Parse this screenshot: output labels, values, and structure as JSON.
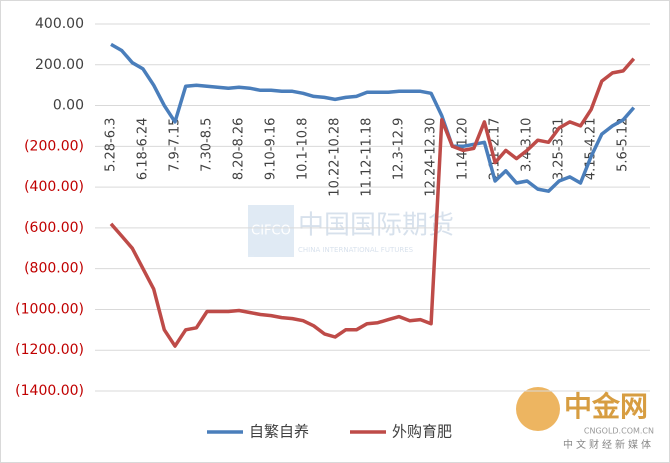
{
  "chart_data": {
    "type": "line",
    "categories": [
      "5.28-6.3",
      null,
      null,
      "6.18-6.24",
      null,
      null,
      "7.9-7.15",
      null,
      null,
      "7.30-8.5",
      null,
      null,
      "8.20-8.26",
      null,
      null,
      "9.10-9.16",
      null,
      null,
      "10.1-10.8",
      null,
      null,
      "10.22-10.28",
      null,
      null,
      "11.12-11.18",
      null,
      null,
      "12.3-12.9",
      null,
      null,
      "12.24-12.30",
      null,
      null,
      "1.14-1.20",
      null,
      null,
      "2.11-2.17",
      null,
      null,
      "3.4-3.10",
      null,
      null,
      "3.25-3.31",
      null,
      null,
      "4.15-4.21",
      null,
      null,
      "5.6-5.12",
      null
    ],
    "series": [
      {
        "name": "自繁自养",
        "color": "#4a7ebb",
        "values": [
          300,
          270,
          210,
          180,
          100,
          0,
          -80,
          95,
          100,
          95,
          90,
          85,
          90,
          85,
          75,
          75,
          70,
          70,
          60,
          45,
          40,
          30,
          40,
          45,
          65,
          65,
          65,
          70,
          70,
          70,
          60,
          -50,
          -200,
          -200,
          -190,
          -180,
          -370,
          -320,
          -380,
          -370,
          -410,
          -420,
          -370,
          -350,
          -380,
          -250,
          -140,
          -100,
          -70,
          -10
        ]
      },
      {
        "name": "外购育肥",
        "color": "#be4b48",
        "values": [
          -580,
          -640,
          -700,
          -800,
          -900,
          -1100,
          -1180,
          -1100,
          -1090,
          -1010,
          -1010,
          -1010,
          -1005,
          -1015,
          -1025,
          -1030,
          -1040,
          -1045,
          -1055,
          -1080,
          -1120,
          -1135,
          -1100,
          -1100,
          -1070,
          -1065,
          -1050,
          -1035,
          -1055,
          -1050,
          -1070,
          -70,
          -200,
          -220,
          -210,
          -80,
          -280,
          -220,
          -260,
          -220,
          -170,
          -180,
          -110,
          -80,
          -100,
          -20,
          120,
          160,
          170,
          230
        ]
      }
    ],
    "ylim": [
      -1400,
      400
    ],
    "yticks": [
      {
        "value": 400,
        "label": "400.00"
      },
      {
        "value": 200,
        "label": "200.00"
      },
      {
        "value": 0,
        "label": "0.00"
      },
      {
        "value": -200,
        "label": "(200.00)"
      },
      {
        "value": -400,
        "label": "(400.00)"
      },
      {
        "value": -600,
        "label": "(600.00)"
      },
      {
        "value": -800,
        "label": "(800.00)"
      },
      {
        "value": -1000,
        "label": "(1000.00)"
      },
      {
        "value": -1200,
        "label": "(1200.00)"
      },
      {
        "value": -1400,
        "label": "(1400.00)"
      }
    ],
    "negative_tick_color": "#c00000",
    "grid": true,
    "legend": "bottom"
  },
  "watermark": {
    "logo": "CIFCO",
    "name": "中国国际期货",
    "name_en": "CHINA INTERNATIONAL FUTURES"
  },
  "corner_logo": {
    "name": "中金网",
    "domain": "CNGOLD.COM.CN",
    "slogan": "中文财经新媒体"
  }
}
